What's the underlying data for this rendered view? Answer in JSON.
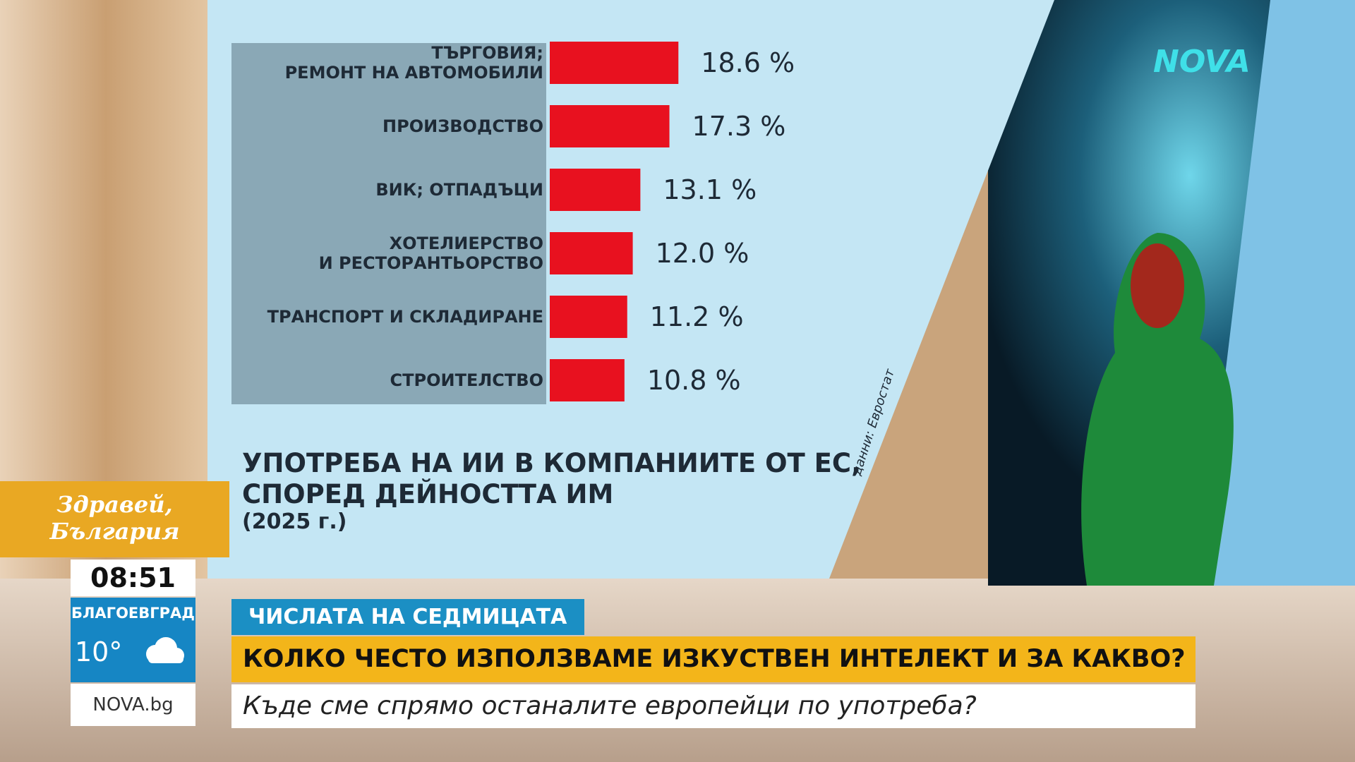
{
  "chart_data": {
    "type": "bar",
    "orientation": "horizontal",
    "title": "УПОТРЕБА НА ИИ В КОМПАНИИТЕ ОТ ЕС,\nСПОРЕД ДЕЙНОСТТА ИМ",
    "subtitle": "(2025 г.)",
    "source": "данни: Евростат",
    "categories": [
      "ТЪРГОВИЯ;\nРЕМОНТ НА АВТОМОБИЛИ",
      "ПРОИЗВОДСТВО",
      "ВИК; ОТПАДЪЦИ",
      "ХОТЕЛИЕРСТВО\nИ РЕСТОРАНТЬОРСТВО",
      "ТРАНСПОРТ И СКЛАДИРАНЕ",
      "СТРОИТЕЛСТВО"
    ],
    "values": [
      18.6,
      17.3,
      13.1,
      12.0,
      11.2,
      10.8
    ],
    "value_labels": [
      "18.6 %",
      "17.3 %",
      "13.1 %",
      "12.0 %",
      "11.2 %",
      "10.8 %"
    ],
    "color": "#e8111f"
  },
  "broadcast": {
    "logo": "NOVA",
    "show": "Здравей,\nБългария",
    "time": "08:51",
    "city": "БЛАГОЕВГРАД",
    "temperature": "10°",
    "website": "NOVA.bg",
    "segment": "ЧИСЛАТА НА СЕДМИЦАТА",
    "headline": "КОЛКО ЧЕСТО ИЗПОЛЗВАМЕ ИЗКУСТВЕН ИНТЕЛЕКТ И ЗА КАКВО?",
    "subheadline": "Къде сме спрямо останалите европейци по употреба?"
  }
}
